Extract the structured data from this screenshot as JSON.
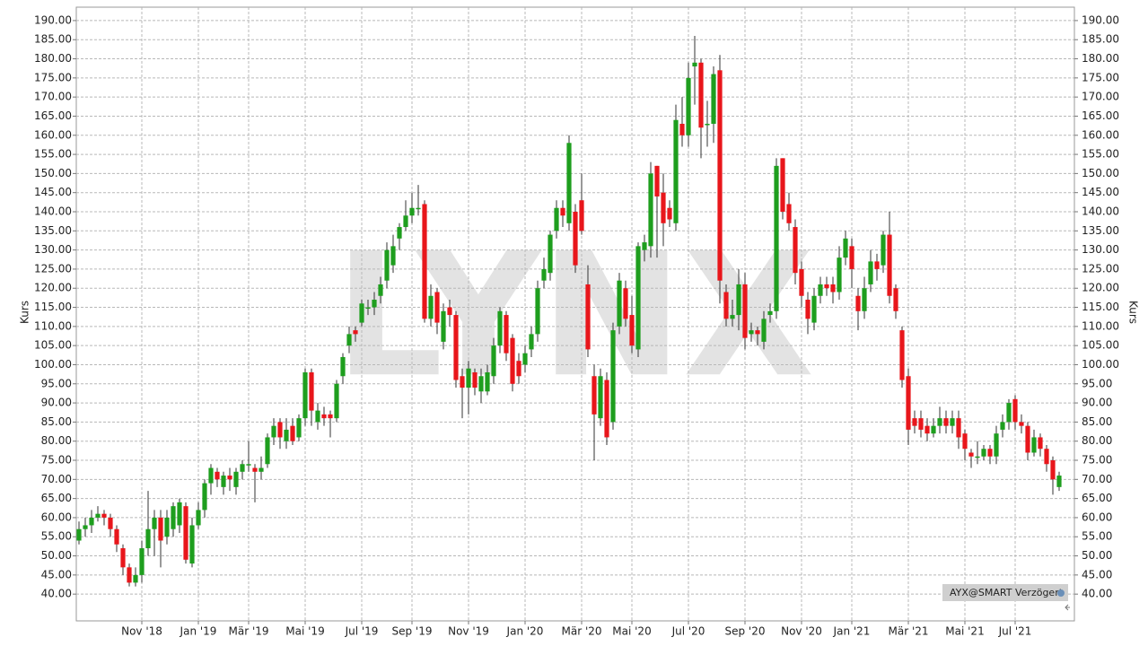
{
  "chart_data": {
    "type": "candlestick",
    "y_label": "Kurs",
    "watermark": "LYNX",
    "legend_text": "AYX@SMART Verzögert",
    "up_color": "#1e9e1e",
    "down_color": "#e8161b",
    "grid": true,
    "ylim": [
      33,
      193.5
    ],
    "yticks": [
      {
        "value": 40,
        "label": "40.00"
      },
      {
        "value": 45,
        "label": "45.00"
      },
      {
        "value": 50,
        "label": "50.00"
      },
      {
        "value": 55,
        "label": "55.00"
      },
      {
        "value": 60,
        "label": "60.00"
      },
      {
        "value": 65,
        "label": "65.00"
      },
      {
        "value": 70,
        "label": "70.00"
      },
      {
        "value": 75,
        "label": "75.00"
      },
      {
        "value": 80,
        "label": "80.00"
      },
      {
        "value": 85,
        "label": "85.00"
      },
      {
        "value": 90,
        "label": "90.00"
      },
      {
        "value": 95,
        "label": "95.00"
      },
      {
        "value": 100,
        "label": "100.00"
      },
      {
        "value": 105,
        "label": "105.00"
      },
      {
        "value": 110,
        "label": "110.00"
      },
      {
        "value": 115,
        "label": "115.00"
      },
      {
        "value": 120,
        "label": "120.00"
      },
      {
        "value": 125,
        "label": "125.00"
      },
      {
        "value": 130,
        "label": "130.00"
      },
      {
        "value": 135,
        "label": "135.00"
      },
      {
        "value": 140,
        "label": "140.00"
      },
      {
        "value": 145,
        "label": "145.00"
      },
      {
        "value": 150,
        "label": "150.00"
      },
      {
        "value": 155,
        "label": "155.00"
      },
      {
        "value": 160,
        "label": "160.00"
      },
      {
        "value": 165,
        "label": "165.00"
      },
      {
        "value": 170,
        "label": "170.00"
      },
      {
        "value": 175,
        "label": "175.00"
      },
      {
        "value": 180,
        "label": "180.00"
      },
      {
        "value": 185,
        "label": "185.00"
      },
      {
        "value": 190,
        "label": "190.00"
      }
    ],
    "categories": [
      null,
      null,
      null,
      null,
      null,
      null,
      null,
      null,
      null,
      null,
      "Nov '18",
      null,
      null,
      null,
      null,
      null,
      null,
      null,
      null,
      "Jan '19",
      null,
      null,
      null,
      null,
      null,
      null,
      null,
      "Mär '19",
      null,
      null,
      null,
      null,
      null,
      null,
      null,
      null,
      "Mai '19",
      null,
      null,
      null,
      null,
      null,
      null,
      null,
      null,
      "Jul '19",
      null,
      null,
      null,
      null,
      null,
      null,
      null,
      "Sep '19",
      null,
      null,
      null,
      null,
      null,
      null,
      null,
      null,
      "Nov '19",
      null,
      null,
      null,
      null,
      null,
      null,
      null,
      null,
      "Jan '20",
      null,
      null,
      null,
      null,
      null,
      null,
      null,
      null,
      "Mär '20",
      null,
      null,
      null,
      null,
      null,
      null,
      null,
      "Mai '20",
      null,
      null,
      null,
      null,
      null,
      null,
      null,
      null,
      "Jul '20",
      null,
      null,
      null,
      null,
      null,
      null,
      null,
      null,
      "Sep '20",
      null,
      null,
      null,
      null,
      null,
      null,
      null,
      null,
      "Nov '20",
      null,
      null,
      null,
      null,
      null,
      null,
      null,
      "Jan '21",
      null,
      null,
      null,
      null,
      null,
      null,
      null,
      null,
      "Mär '21",
      null,
      null,
      null,
      null,
      null,
      null,
      null,
      null,
      "Mai '21",
      null,
      null,
      null,
      null,
      null,
      null,
      null,
      "Jul '21",
      null,
      null,
      null,
      null,
      null,
      null,
      null
    ],
    "open": [
      54,
      57,
      58,
      60,
      61,
      60,
      57,
      52,
      47,
      43,
      45,
      52,
      57,
      60,
      55,
      57,
      58,
      63,
      48,
      58,
      62,
      69,
      72,
      68,
      71,
      68,
      72,
      74,
      73,
      72,
      74,
      81,
      85,
      80,
      84,
      81,
      86,
      98,
      85,
      87,
      87,
      86,
      97,
      105,
      109,
      111,
      115,
      115,
      118,
      122,
      126,
      133,
      136,
      139,
      141,
      142,
      112,
      119,
      106,
      115,
      113,
      97,
      94,
      98,
      93,
      93,
      97,
      105,
      113,
      107,
      101,
      100,
      104,
      108,
      122,
      124,
      135,
      141,
      137,
      140,
      143,
      121,
      97,
      86,
      96,
      85,
      110,
      120,
      113,
      104,
      130,
      131,
      152,
      145,
      141,
      137,
      163,
      160,
      178,
      179,
      163,
      163,
      177,
      119,
      112,
      113,
      121,
      108,
      109,
      106,
      113,
      114,
      154,
      142,
      136,
      125,
      117,
      111,
      118,
      121,
      121,
      119,
      128,
      131,
      118,
      114,
      121,
      127,
      126,
      134,
      120,
      109,
      97,
      86,
      86,
      84,
      82,
      84,
      86,
      84,
      86,
      82,
      77,
      76,
      76,
      78,
      76,
      83,
      85,
      91,
      85,
      84,
      77,
      81,
      78,
      75,
      68
    ],
    "high": [
      59,
      60,
      62,
      63,
      62,
      61,
      58,
      53,
      48,
      47,
      54,
      67,
      62,
      62,
      62,
      64,
      65,
      64,
      60,
      64,
      70,
      74,
      73,
      72,
      73,
      73,
      75,
      80,
      74,
      76,
      82,
      86,
      86,
      86,
      86,
      87,
      99,
      99,
      90,
      89,
      88,
      96,
      103,
      110,
      110,
      117,
      117,
      119,
      123,
      132,
      134,
      137,
      143,
      145,
      147,
      143,
      121,
      120,
      116,
      117,
      114,
      99,
      101,
      99,
      99,
      100,
      107,
      115,
      114,
      108,
      103,
      105,
      110,
      122,
      128,
      135,
      143,
      143,
      160,
      142,
      150,
      126,
      100,
      99,
      98,
      111,
      124,
      122,
      118,
      132,
      134,
      153,
      152,
      150,
      143,
      168,
      170,
      179,
      186,
      180,
      169,
      178,
      181,
      121,
      117,
      125,
      124,
      111,
      110,
      114,
      116,
      154,
      154,
      145,
      138,
      127,
      119,
      120,
      123,
      123,
      123,
      131,
      135,
      133,
      120,
      123,
      130,
      129,
      135,
      140,
      121,
      110,
      99,
      88,
      88,
      86,
      86,
      89,
      88,
      88,
      88,
      83,
      78,
      80,
      79,
      79,
      84,
      87,
      91,
      92,
      87,
      85,
      83,
      82,
      79,
      76,
      72
    ],
    "low": [
      53,
      55,
      56,
      59,
      58,
      55,
      51,
      45,
      42,
      42,
      43,
      50,
      50,
      47,
      53,
      55,
      56,
      48,
      47,
      57,
      60,
      66,
      68,
      66,
      67,
      66,
      70,
      72,
      64,
      70,
      73,
      79,
      78,
      78,
      79,
      80,
      84,
      84,
      83,
      84,
      81,
      85,
      95,
      103,
      106,
      110,
      113,
      113,
      116,
      120,
      124,
      130,
      135,
      137,
      139,
      111,
      110,
      108,
      104,
      110,
      94,
      86,
      87,
      92,
      90,
      92,
      95,
      103,
      101,
      93,
      95,
      98,
      102,
      106,
      120,
      122,
      133,
      136,
      135,
      124,
      134,
      102,
      75,
      84,
      79,
      83,
      108,
      110,
      103,
      102,
      127,
      128,
      128,
      131,
      136,
      135,
      157,
      157,
      168,
      154,
      157,
      158,
      116,
      110,
      110,
      109,
      104,
      106,
      105,
      104,
      111,
      112,
      138,
      135,
      121,
      115,
      108,
      109,
      116,
      118,
      116,
      117,
      126,
      120,
      109,
      112,
      119,
      122,
      124,
      116,
      112,
      94,
      79,
      82,
      81,
      80,
      81,
      82,
      82,
      82,
      78,
      75,
      73,
      74,
      75,
      74,
      74,
      81,
      83,
      83,
      82,
      75,
      76,
      76,
      72,
      66,
      67
    ],
    "close": [
      57,
      58,
      60,
      61,
      60,
      57,
      53,
      47,
      43,
      45,
      52,
      57,
      60,
      54,
      60,
      63,
      64,
      49,
      58,
      62,
      69,
      73,
      70,
      71,
      70,
      72,
      74,
      74,
      72,
      73,
      81,
      84,
      81,
      83,
      80,
      86,
      98,
      88,
      88,
      86,
      86,
      95,
      102,
      108,
      108,
      116,
      115,
      117,
      121,
      130,
      131,
      136,
      139,
      141,
      141,
      112,
      118,
      111,
      114,
      113,
      96,
      94,
      99,
      94,
      97,
      98,
      105,
      114,
      103,
      95,
      97,
      103,
      108,
      120,
      125,
      134,
      141,
      139,
      158,
      126,
      135,
      104,
      87,
      97,
      81,
      109,
      122,
      112,
      105,
      131,
      132,
      150,
      144,
      137,
      138,
      164,
      160,
      175,
      179,
      162,
      163,
      176,
      122,
      112,
      113,
      121,
      107,
      109,
      108,
      112,
      114,
      152,
      140,
      137,
      124,
      118,
      112,
      118,
      121,
      120,
      119,
      128,
      133,
      125,
      114,
      120,
      127,
      125,
      134,
      118,
      114,
      96,
      83,
      84,
      83,
      82,
      84,
      86,
      84,
      86,
      81,
      78,
      76,
      76,
      78,
      76,
      82,
      85,
      90,
      85,
      84,
      77,
      81,
      78,
      74,
      70,
      71
    ]
  }
}
